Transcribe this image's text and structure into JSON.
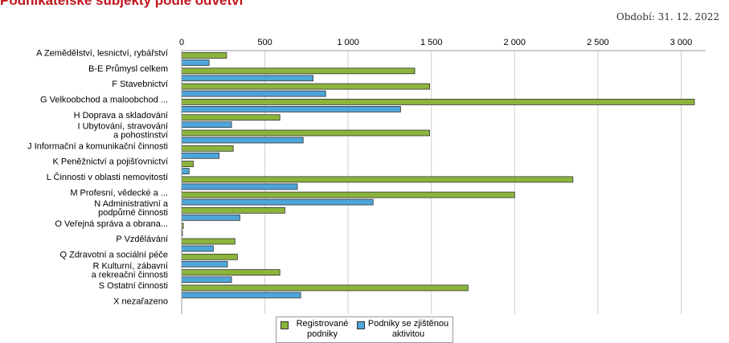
{
  "header": {
    "title": "Podnikatelské subjekty podle odvětví",
    "period": "Období: 31. 12. 2022"
  },
  "colors": {
    "registered": "#8cb43c",
    "active": "#4ea5d9"
  },
  "chart_data": {
    "type": "bar",
    "orientation": "horizontal",
    "grid": true,
    "legend_position": "bottom",
    "xlim": [
      0,
      3150
    ],
    "ticks": [
      0,
      500,
      1000,
      1500,
      2000,
      2500,
      3000
    ],
    "tick_labels": [
      "0",
      "500",
      "1 000",
      "1 500",
      "2 000",
      "2 500",
      "3 000"
    ],
    "categories": [
      [
        "A Zemědělství, lesnictví, rybářství"
      ],
      [
        "B-E Průmysl celkem"
      ],
      [
        "F Stavebnictví"
      ],
      [
        "G Velkoobchod a maloobchod ..."
      ],
      [
        "H Doprava a skladování"
      ],
      [
        "I Ubytování, stravování",
        "a pohostinství"
      ],
      [
        "J Informační a komunikační činnosti"
      ],
      [
        "K Peněžnictví a pojišťovnictví"
      ],
      [
        "L Činnosti v oblasti nemovitostí"
      ],
      [
        "M Profesní, vědecké a ..."
      ],
      [
        "N Administrativní a",
        "podpůrné činnosti"
      ],
      [
        "O Veřejná správa a obrana..."
      ],
      [
        "P Vzdělávání"
      ],
      [
        "Q  Zdravotní a sociální péče"
      ],
      [
        "R Kulturní, zábavní",
        "a rekreační činnosti"
      ],
      [
        "S Ostatní činnosti"
      ],
      [
        "X nezařazeno"
      ]
    ],
    "series": [
      {
        "name": "Registrované podniky",
        "values": [
          270,
          1400,
          1490,
          3080,
          590,
          1490,
          310,
          70,
          2350,
          2000,
          620,
          10,
          320,
          335,
          590,
          1720,
          0
        ]
      },
      {
        "name": "Podniky se zjištěnou aktivitou",
        "values": [
          165,
          790,
          865,
          1315,
          300,
          730,
          225,
          45,
          695,
          1150,
          350,
          5,
          190,
          275,
          300,
          715,
          0
        ]
      }
    ]
  }
}
